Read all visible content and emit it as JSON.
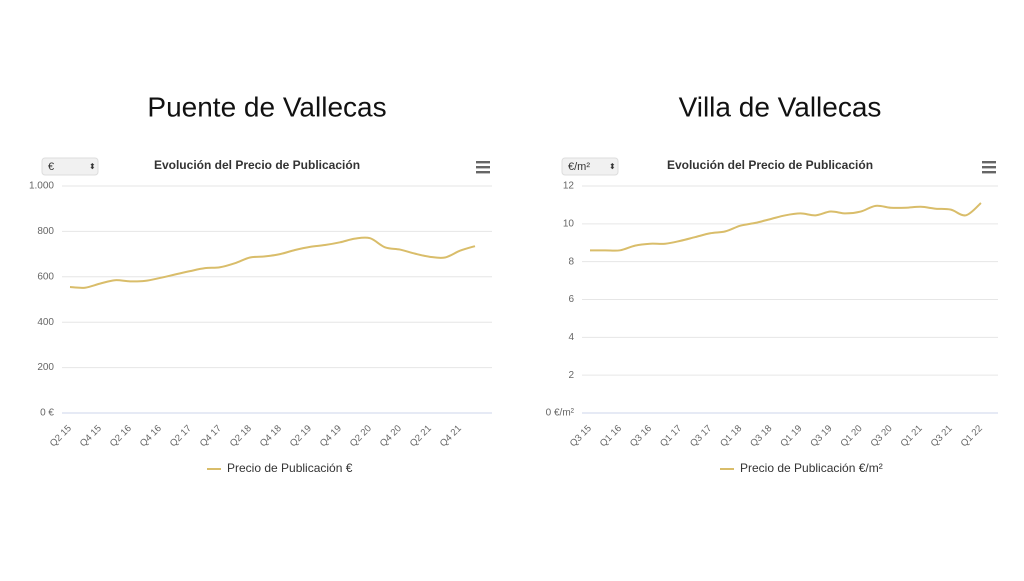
{
  "chart_data": [
    {
      "type": "line",
      "heading": "Puente de Vallecas",
      "unit_selector": "€",
      "title": "Evolución del Precio de Publicación",
      "categories": [
        "Q2 15",
        null,
        "Q4 15",
        null,
        "Q2 16",
        null,
        "Q4 16",
        null,
        "Q2 17",
        null,
        "Q4 17",
        null,
        "Q2 18",
        null,
        "Q4 18",
        null,
        "Q2 19",
        null,
        "Q4 19",
        null,
        "Q2 20",
        null,
        "Q4 20",
        null,
        "Q2 21",
        null,
        "Q4 21",
        null
      ],
      "series": [
        {
          "name": "Precio de Publicación €",
          "color": "#d9bd6a",
          "values": [
            555,
            552,
            570,
            585,
            580,
            582,
            595,
            610,
            625,
            638,
            642,
            660,
            685,
            690,
            700,
            718,
            732,
            740,
            752,
            768,
            770,
            730,
            720,
            702,
            688,
            685,
            715,
            735
          ]
        }
      ],
      "ylim": [
        0,
        1000
      ],
      "yticks": [
        {
          "value": 0,
          "label": "0 €"
        },
        200,
        400,
        600,
        800,
        {
          "value": 1000,
          "label": "1.000"
        }
      ],
      "grid": true
    },
    {
      "type": "line",
      "heading": "Villa de Vallecas",
      "unit_selector": "€/m²",
      "title": "Evolución del Precio de Publicación",
      "categories": [
        "Q3 15",
        null,
        "Q1 16",
        null,
        "Q3 16",
        null,
        "Q1 17",
        null,
        "Q3 17",
        null,
        "Q1 18",
        null,
        "Q3 18",
        null,
        "Q1 19",
        null,
        "Q3 19",
        null,
        "Q1 20",
        null,
        "Q3 20",
        null,
        "Q1 21",
        null,
        "Q3 21",
        null,
        "Q1 22"
      ],
      "series": [
        {
          "name": "Precio de Publicación €/m²",
          "color": "#d9bd6a",
          "values": [
            8.6,
            8.6,
            8.6,
            8.85,
            8.95,
            8.95,
            9.1,
            9.3,
            9.5,
            9.6,
            9.9,
            10.05,
            10.25,
            10.45,
            10.55,
            10.45,
            10.65,
            10.55,
            10.65,
            10.95,
            10.85,
            10.85,
            10.9,
            10.8,
            10.75,
            10.45,
            11.1
          ]
        }
      ],
      "ylim": [
        0,
        12
      ],
      "yticks": [
        {
          "value": 0,
          "label": "0 €/m²"
        },
        2,
        4,
        6,
        8,
        10,
        12
      ],
      "grid": true
    }
  ]
}
